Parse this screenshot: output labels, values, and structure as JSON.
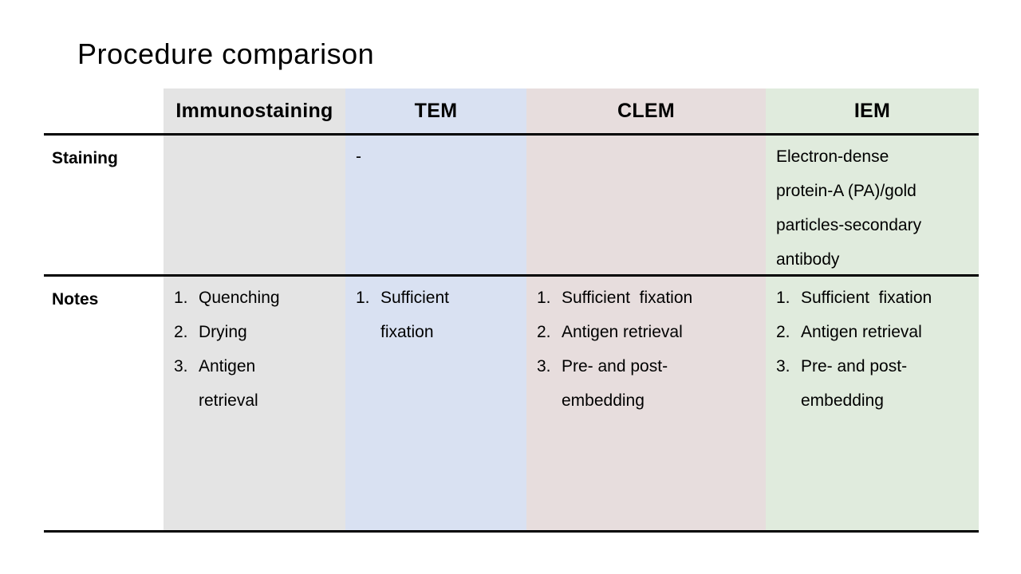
{
  "slide": {
    "title": "Procedure comparison",
    "background_color": "#ffffff"
  },
  "colors": {
    "immunostaining_column_bg": "#e4e4e4",
    "tem_column_bg": "#d9e1f2",
    "clem_column_bg": "#e7dddd",
    "iem_column_bg": "#e0ebdd",
    "rule_line": "#000000",
    "text": "#000000"
  },
  "table": {
    "columns": [
      {
        "key": "rowlabel",
        "label": ""
      },
      {
        "key": "immunostaining",
        "label": "Immunostaining"
      },
      {
        "key": "tem",
        "label": "TEM"
      },
      {
        "key": "clem",
        "label": "CLEM"
      },
      {
        "key": "iem",
        "label": "IEM"
      }
    ],
    "rows": [
      {
        "label": "Staining",
        "cells": {
          "immunostaining": {
            "text": ""
          },
          "tem": {
            "text": "-"
          },
          "clem": {
            "text": ""
          },
          "iem": {
            "text": "Electron-dense\nprotein-A (PA)/gold\nparticles-secondary\nantibody"
          }
        }
      },
      {
        "label": "Notes",
        "cells": {
          "immunostaining": {
            "items": [
              {
                "num": "1.",
                "text": "Quenching"
              },
              {
                "num": "2.",
                "text": "Drying"
              },
              {
                "num": "3.",
                "text": "Antigen\nretrieval"
              }
            ]
          },
          "tem": {
            "items": [
              {
                "num": "1.",
                "text": "Sufficient\nfixation"
              }
            ]
          },
          "clem": {
            "items": [
              {
                "num": "1.",
                "text": "Sufficient  fixation"
              },
              {
                "num": "2.",
                "text": "Antigen retrieval"
              },
              {
                "num": "3.",
                "text": "Pre- and post-\nembedding"
              }
            ]
          },
          "iem": {
            "items": [
              {
                "num": "1.",
                "text": "Sufficient  fixation"
              },
              {
                "num": "2.",
                "text": "Antigen retrieval"
              },
              {
                "num": "3.",
                "text": "Pre- and post-\nembedding"
              }
            ]
          }
        }
      }
    ]
  }
}
